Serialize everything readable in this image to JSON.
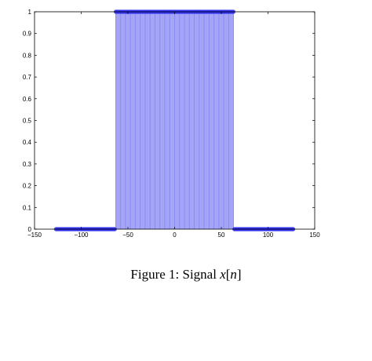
{
  "caption": {
    "prefix": "Figure 1: Signal ",
    "math_var": "x",
    "bracket_open": "[",
    "math_index": "n",
    "bracket_close": "]"
  },
  "chart_data": {
    "type": "stem",
    "title": "",
    "xlabel": "",
    "ylabel": "",
    "xlim": [
      -150,
      150
    ],
    "ylim": [
      0,
      1
    ],
    "xticks": [
      -150,
      -100,
      -50,
      0,
      50,
      100,
      150
    ],
    "xtick_labels": [
      "−150",
      "−100",
      "−50",
      "0",
      "50",
      "100",
      "150"
    ],
    "yticks": [
      0,
      0.1,
      0.2,
      0.3,
      0.4,
      0.5,
      0.6,
      0.7,
      0.8,
      0.9,
      1
    ],
    "ytick_labels": [
      "0",
      "0.1",
      "0.2",
      "0.3",
      "0.4",
      "0.5",
      "0.6",
      "0.7",
      "0.8",
      "0.9",
      "1"
    ],
    "grid": false,
    "series": [
      {
        "color": "#3333ee",
        "stem_color": "#8c8cf5",
        "n_range": [
          -127,
          127
        ],
        "pieces": [
          {
            "from": -127,
            "to": -64,
            "value": 0
          },
          {
            "from": -63,
            "to": 63,
            "value": 1
          },
          {
            "from": 64,
            "to": 127,
            "value": 0
          }
        ]
      }
    ]
  }
}
